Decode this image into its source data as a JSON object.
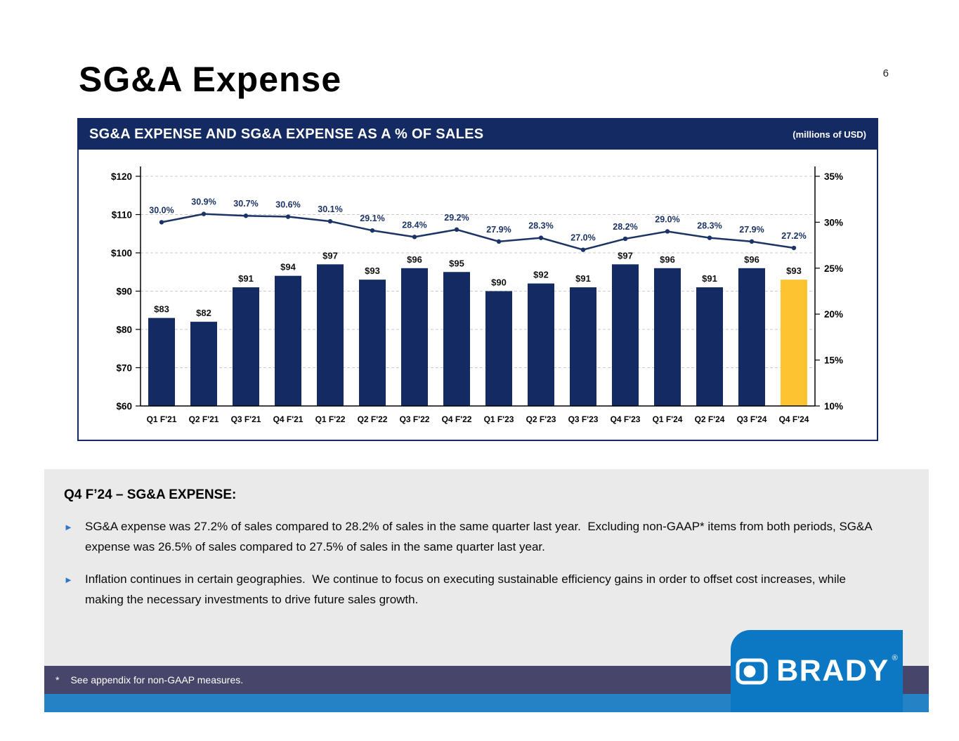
{
  "page": {
    "title": "SG&A Expense",
    "page_number": "6"
  },
  "chart_panel": {
    "header": "SG&A EXPENSE AND SG&A EXPENSE AS A % OF SALES",
    "units": "(millions of USD)"
  },
  "chart_data": {
    "type": "bar",
    "subtype": "bar+line combo, dual axis",
    "categories": [
      "Q1 F'21",
      "Q2 F'21",
      "Q3 F'21",
      "Q4 F'21",
      "Q1 F'22",
      "Q2 F'22",
      "Q3 F'22",
      "Q4 F'22",
      "Q1 F'23",
      "Q2 F'23",
      "Q3 F'23",
      "Q4 F'23",
      "Q1 F'24",
      "Q2 F'24",
      "Q3 F'24",
      "Q4 F'24"
    ],
    "series": [
      {
        "name": "SG&A Expense (millions USD)",
        "type": "bar",
        "values": [
          83,
          82,
          91,
          94,
          97,
          93,
          96,
          95,
          90,
          92,
          91,
          97,
          96,
          91,
          96,
          93
        ]
      },
      {
        "name": "SG&A Expense as % of Sales",
        "type": "line",
        "values": [
          30.0,
          30.9,
          30.7,
          30.6,
          30.1,
          29.1,
          28.4,
          29.2,
          27.9,
          28.3,
          27.0,
          28.2,
          29.0,
          28.3,
          27.9,
          27.2
        ]
      }
    ],
    "left_axis": {
      "min": 60,
      "max": 120,
      "step": 10,
      "format": "$"
    },
    "right_axis": {
      "min": 10,
      "max": 35,
      "step": 5,
      "format": "%"
    },
    "grid": "dashed horizontal",
    "legend": "none",
    "bar_color": "#132a63",
    "highlight_color": "#fdc331",
    "highlight_index": 15,
    "line_color": "#1b3465"
  },
  "commentary": {
    "heading": "Q4 F’24 – SG&A EXPENSE:",
    "bullets": [
      "SG&A expense was 27.2% of sales compared to 28.2% of sales in the same quarter last year.  Excluding non-GAAP* items from both periods, SG&A expense was 26.5% of sales compared to 27.5% of sales in the same quarter last year.",
      "Inflation continues in certain geographies.  We continue to focus on executing sustainable efficiency gains in order to offset cost increases, while making the necessary investments to drive future sales growth."
    ]
  },
  "footer": {
    "note_star": "*",
    "note_text": "See appendix for non-GAAP measures.",
    "brand": "BRADY",
    "reg": "®"
  },
  "icons": {
    "bullet_marker": "►"
  },
  "theme": {
    "navy": "#132a63",
    "highlight_gold": "#fdc331",
    "bullet_blue": "#2e77c8",
    "footer_purple": "#474569",
    "footer_blue": "#2583c5",
    "brand_blue": "#0c77c2",
    "commentary_gray": "#eaeaea"
  }
}
